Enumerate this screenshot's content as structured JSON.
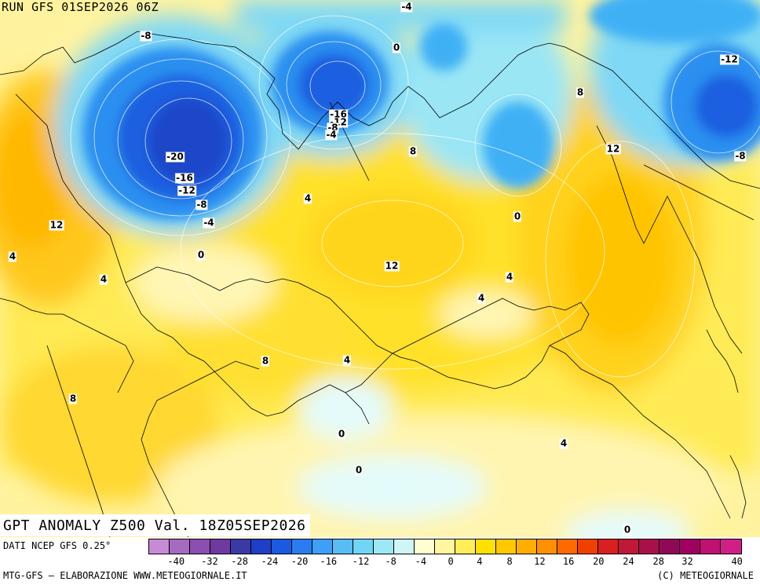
{
  "header": {
    "run_label": "RUN GFS 01SEP2026 06Z"
  },
  "map": {
    "title": "GPT ANOMALY Z500 Val. 18Z05SEP2026",
    "contour_labels": [
      "-8",
      "-4",
      "0",
      "-12",
      "-20",
      "-16",
      "-12",
      "-8",
      "-4",
      "-16",
      "-12",
      "-8",
      "-4",
      "0",
      "8",
      "4",
      "12",
      "8",
      "12",
      "0",
      "4",
      "4",
      "12",
      "8",
      "4",
      "4",
      "8",
      "4",
      "0",
      "0",
      "4",
      "0",
      "-8"
    ]
  },
  "footer": {
    "data_source": "DATI NCEP GFS 0.25°",
    "credit_left": "MTG-GFS – ELABORAZIONE WWW.METEOGIORNALE.IT",
    "credit_right": "(C) METEOGIORNALE",
    "scale_ticks": [
      "-40",
      "-32",
      "-28",
      "-24",
      "-20",
      "-16",
      "-12",
      "-8",
      "-4",
      "0",
      "4",
      "8",
      "12",
      "16",
      "20",
      "24",
      "28",
      "32",
      "40"
    ],
    "scale_colors": [
      "#c78bd6",
      "#a56bc0",
      "#8a4fb0",
      "#6e3aa0",
      "#3a3aa6",
      "#1e3fc8",
      "#1a5ae0",
      "#2b7cf0",
      "#3f9ef5",
      "#58bdf5",
      "#6fd6f5",
      "#9de8f5",
      "#cff5f5",
      "#ffffd0",
      "#fff6a0",
      "#ffee55",
      "#ffe100",
      "#ffc800",
      "#ffae00",
      "#ff9000",
      "#ff6a00",
      "#f04000",
      "#d82020",
      "#c01838",
      "#a8104a",
      "#900858",
      "#a00060",
      "#c01070",
      "#d02088"
    ]
  }
}
